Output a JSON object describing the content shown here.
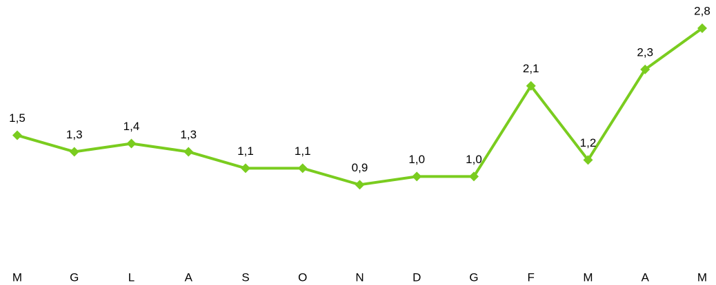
{
  "chart_data": {
    "type": "line",
    "categories": [
      "M",
      "G",
      "L",
      "A",
      "S",
      "O",
      "N",
      "D",
      "G",
      "F",
      "M",
      "A",
      "M"
    ],
    "series": [
      {
        "color": "#7acc1f",
        "values": [
          1.5,
          1.3,
          1.4,
          1.3,
          1.1,
          1.1,
          0.9,
          1.0,
          1.0,
          2.1,
          1.2,
          2.3,
          2.8
        ],
        "value_labels": [
          "1,5",
          "1,3",
          "1,4",
          "1,3",
          "1,1",
          "1,1",
          "0,9",
          "1,0",
          "1,0",
          "2,1",
          "1,2",
          "2,3",
          "2,8"
        ]
      }
    ]
  }
}
